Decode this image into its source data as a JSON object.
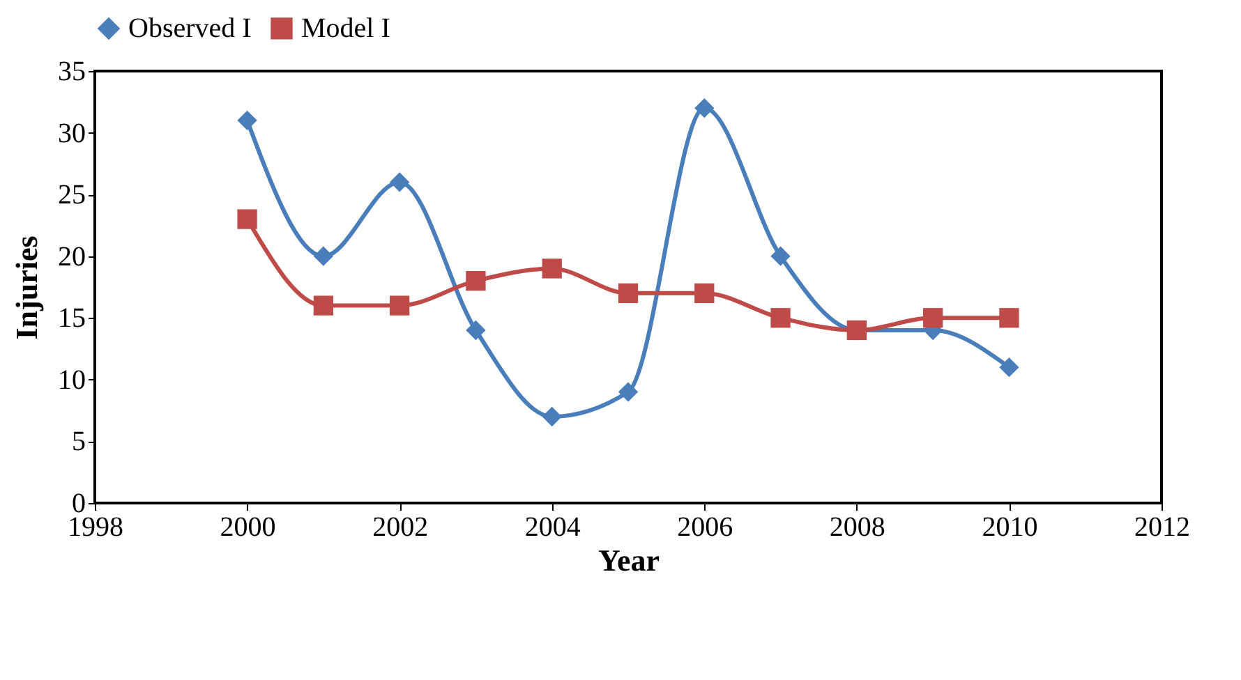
{
  "chart_data": {
    "type": "line",
    "xlabel": "Year",
    "ylabel": "Injuries",
    "x": [
      2000,
      2001,
      2002,
      2003,
      2004,
      2005,
      2006,
      2007,
      2008,
      2009,
      2010
    ],
    "series": [
      {
        "name": "Observed I",
        "color": "#4a7ebb",
        "marker": "diamond",
        "values": [
          31,
          20,
          26,
          14,
          7,
          9,
          32,
          20,
          14,
          14,
          11
        ]
      },
      {
        "name": "Model I",
        "color": "#be4b48",
        "marker": "square",
        "values": [
          23,
          16,
          16,
          18,
          19,
          17,
          17,
          15,
          14,
          15,
          15
        ]
      }
    ],
    "xlim": [
      1998,
      2012
    ],
    "xticks": [
      1998,
      2000,
      2002,
      2004,
      2006,
      2008,
      2010,
      2012
    ],
    "ylim": [
      0,
      35
    ],
    "yticks": [
      0,
      5,
      10,
      15,
      20,
      25,
      30,
      35
    ],
    "legend": "top"
  }
}
